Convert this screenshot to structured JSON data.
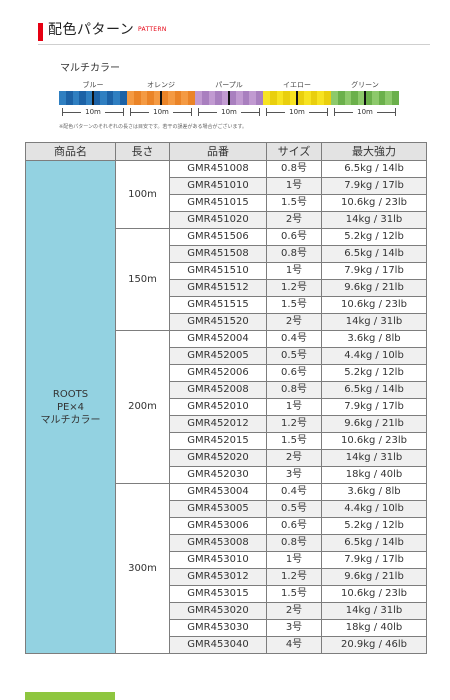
{
  "header": {
    "title": "配色パターン",
    "subtitle": "PATTERN"
  },
  "pattern": {
    "label": "マルチカラー",
    "colors": [
      {
        "name": "ブルー",
        "hex": "#2f7fc1",
        "alt": "#1c62a6",
        "length": "10m"
      },
      {
        "name": "オレンジ",
        "hex": "#f49a43",
        "alt": "#ea8428",
        "length": "10m"
      },
      {
        "name": "パープル",
        "hex": "#c19ad1",
        "alt": "#a97fbf",
        "length": "10m"
      },
      {
        "name": "イエロー",
        "hex": "#f7e321",
        "alt": "#e9cf0e",
        "length": "10m"
      },
      {
        "name": "グリーン",
        "hex": "#8dc96b",
        "alt": "#6bb04b",
        "length": "10m"
      }
    ],
    "note": "※配色パターンのそれぞれの長さは目安です。若干の誤差がある場合がございます。"
  },
  "table": {
    "headers": {
      "product": "商品名",
      "length": "長さ",
      "part": "品番",
      "size": "サイズ",
      "strength": "最大強力"
    },
    "product_name": [
      "ROOTS",
      "PE×4",
      "マルチカラー"
    ],
    "groups": [
      {
        "length": "100m",
        "rows": [
          {
            "part": "GMR451008",
            "size": "0.8号",
            "strength": "6.5kg / 14lb"
          },
          {
            "part": "GMR451010",
            "size": "1号",
            "strength": "7.9kg / 17lb"
          },
          {
            "part": "GMR451015",
            "size": "1.5号",
            "strength": "10.6kg / 23lb"
          },
          {
            "part": "GMR451020",
            "size": "2号",
            "strength": "14kg / 31lb"
          }
        ]
      },
      {
        "length": "150m",
        "rows": [
          {
            "part": "GMR451506",
            "size": "0.6号",
            "strength": "5.2kg / 12lb"
          },
          {
            "part": "GMR451508",
            "size": "0.8号",
            "strength": "6.5kg / 14lb"
          },
          {
            "part": "GMR451510",
            "size": "1号",
            "strength": "7.9kg / 17lb"
          },
          {
            "part": "GMR451512",
            "size": "1.2号",
            "strength": "9.6kg / 21lb"
          },
          {
            "part": "GMR451515",
            "size": "1.5号",
            "strength": "10.6kg / 23lb"
          },
          {
            "part": "GMR451520",
            "size": "2号",
            "strength": "14kg / 31lb"
          }
        ]
      },
      {
        "length": "200m",
        "rows": [
          {
            "part": "GMR452004",
            "size": "0.4号",
            "strength": "3.6kg / 8lb"
          },
          {
            "part": "GMR452005",
            "size": "0.5号",
            "strength": "4.4kg / 10lb"
          },
          {
            "part": "GMR452006",
            "size": "0.6号",
            "strength": "5.2kg / 12lb"
          },
          {
            "part": "GMR452008",
            "size": "0.8号",
            "strength": "6.5kg / 14lb"
          },
          {
            "part": "GMR452010",
            "size": "1号",
            "strength": "7.9kg / 17lb"
          },
          {
            "part": "GMR452012",
            "size": "1.2号",
            "strength": "9.6kg / 21lb"
          },
          {
            "part": "GMR452015",
            "size": "1.5号",
            "strength": "10.6kg / 23lb"
          },
          {
            "part": "GMR452020",
            "size": "2号",
            "strength": "14kg / 31lb"
          },
          {
            "part": "GMR452030",
            "size": "3号",
            "strength": "18kg / 40lb"
          }
        ]
      },
      {
        "length": "300m",
        "rows": [
          {
            "part": "GMR453004",
            "size": "0.4号",
            "strength": "3.6kg / 8lb"
          },
          {
            "part": "GMR453005",
            "size": "0.5号",
            "strength": "4.4kg / 10lb"
          },
          {
            "part": "GMR453006",
            "size": "0.6号",
            "strength": "5.2kg / 12lb"
          },
          {
            "part": "GMR453008",
            "size": "0.8号",
            "strength": "6.5kg / 14lb"
          },
          {
            "part": "GMR453010",
            "size": "1号",
            "strength": "7.9kg / 17lb"
          },
          {
            "part": "GMR453012",
            "size": "1.2号",
            "strength": "9.6kg / 21lb"
          },
          {
            "part": "GMR453015",
            "size": "1.5号",
            "strength": "10.6kg / 23lb"
          },
          {
            "part": "GMR453020",
            "size": "2号",
            "strength": "14kg / 31lb"
          },
          {
            "part": "GMR453030",
            "size": "3号",
            "strength": "18kg / 40lb"
          },
          {
            "part": "GMR453040",
            "size": "4号",
            "strength": "20.9kg / 46lb"
          }
        ]
      }
    ]
  }
}
